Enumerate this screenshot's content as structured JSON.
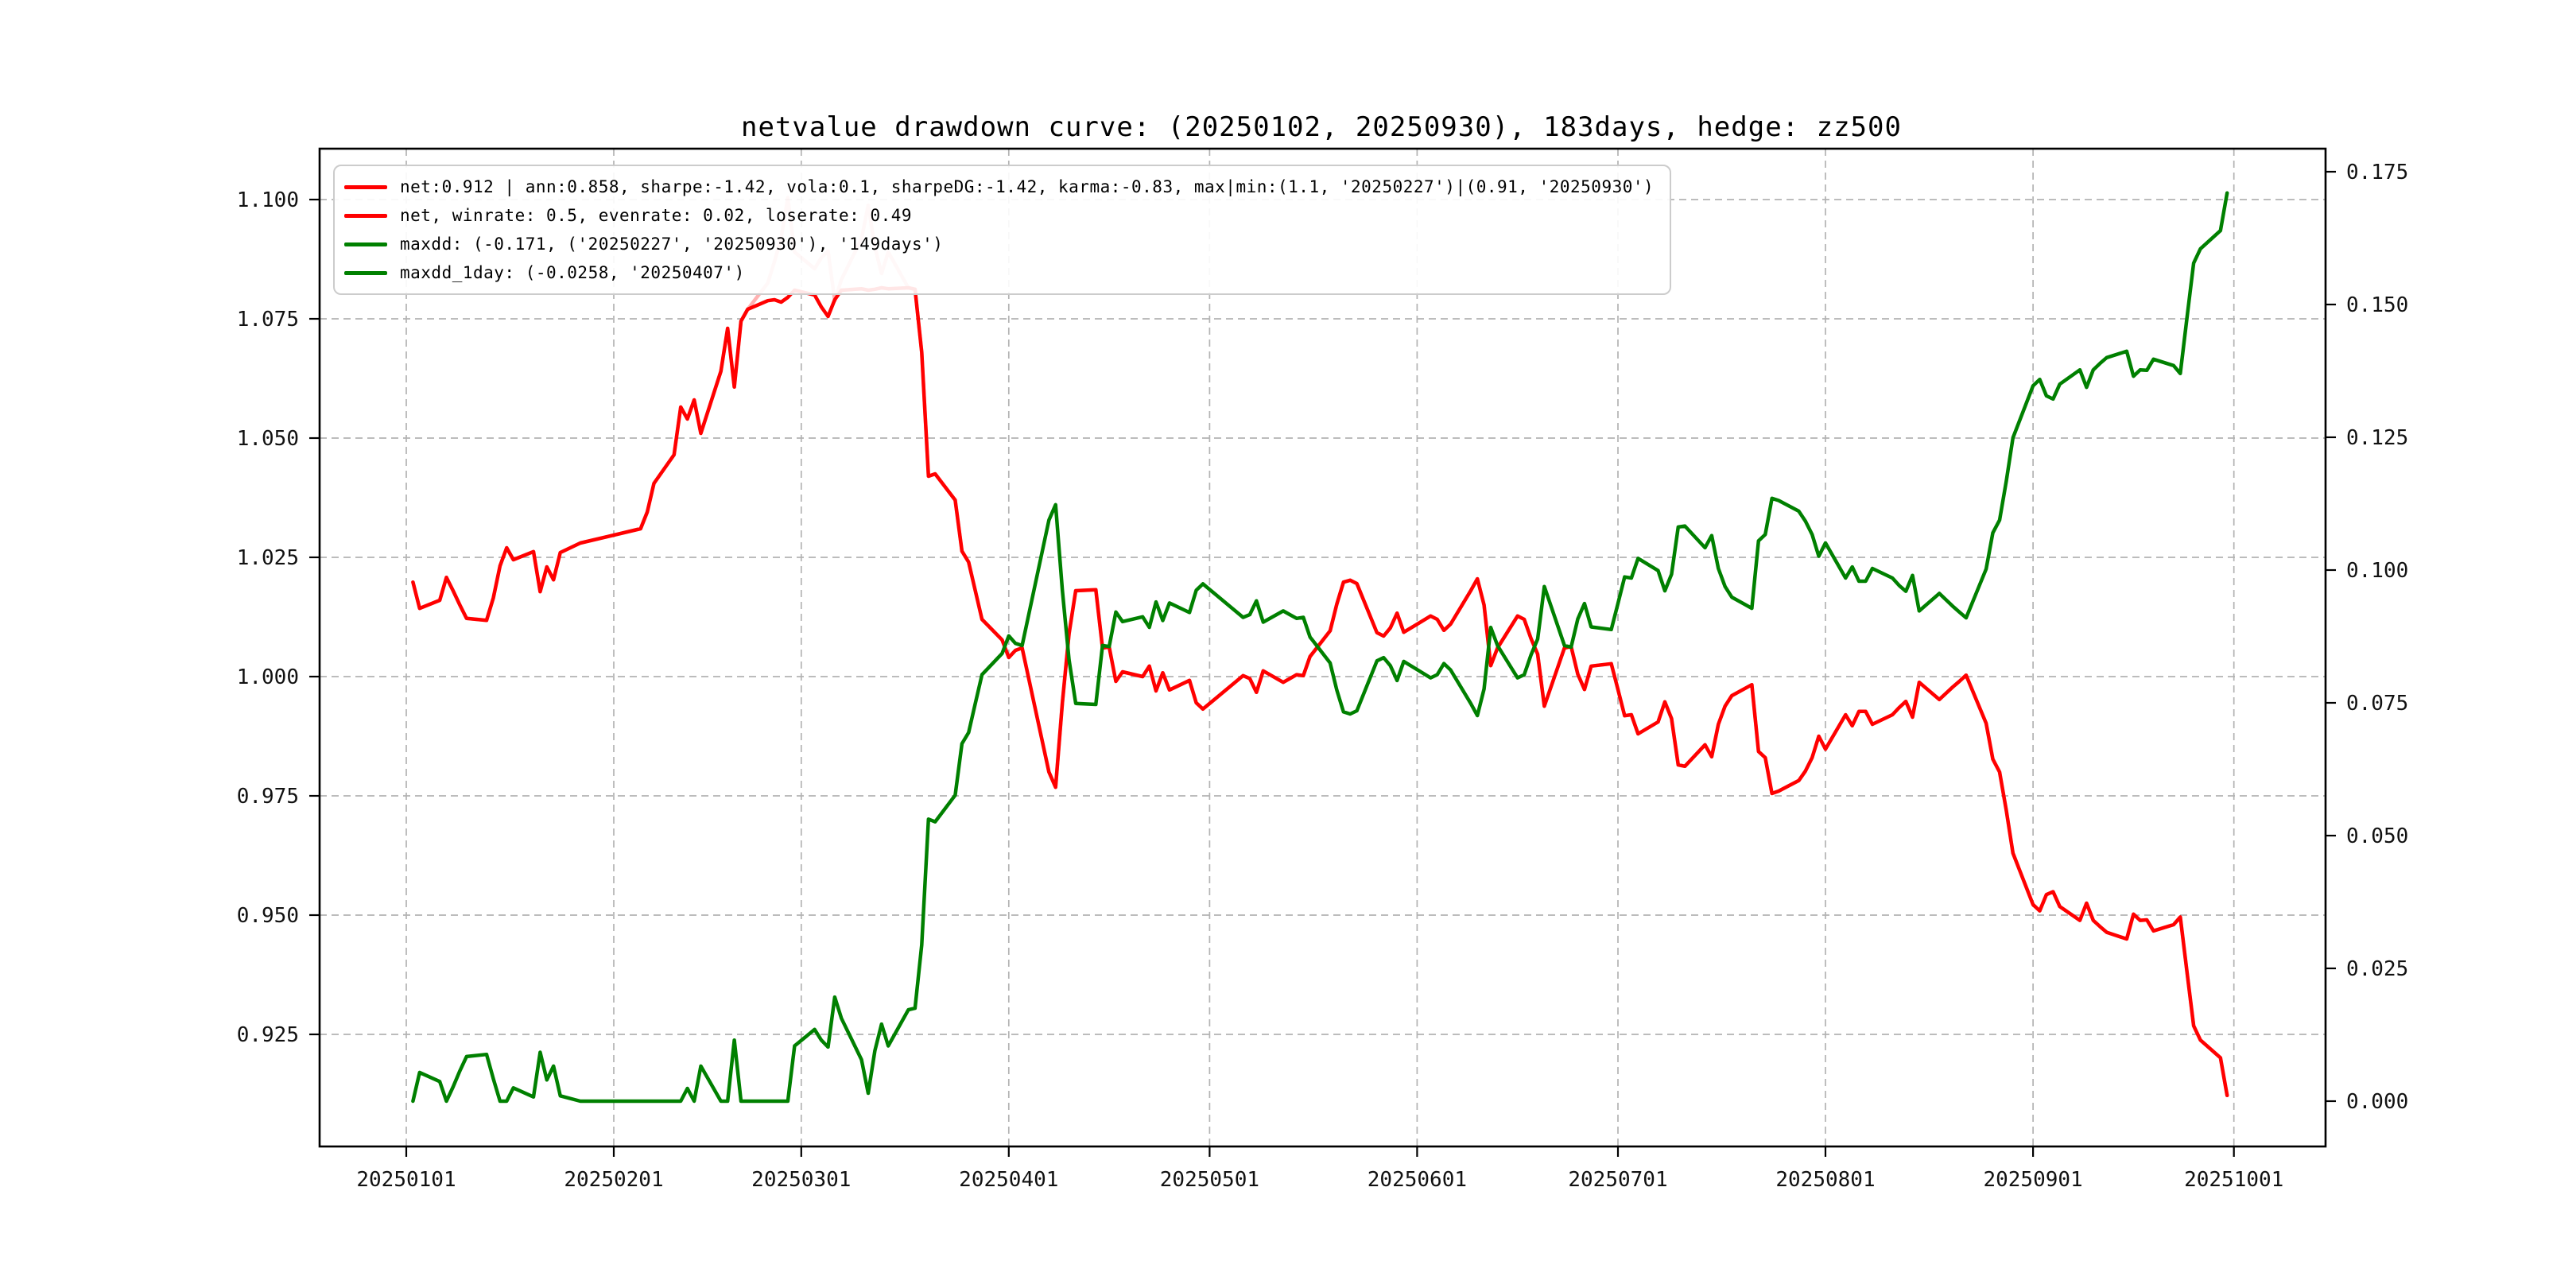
{
  "title": "netvalue drawdown curve: (20250102, 20250930), 183days, hedge: zz500",
  "colors": {
    "net_line": "#ff0000",
    "maxdd_line": "#008000",
    "grid": "#b3b3b3",
    "spine": "#000000",
    "background": "#ffffff"
  },
  "legend": {
    "position": "upper left",
    "items": [
      {
        "label": "net:0.912 | ann:0.858, sharpe:-1.42, vola:0.1, sharpeDG:-1.42, karma:-0.83, max|min:(1.1, '20250227')|(0.91, '20250930')",
        "color": "#ff0000",
        "swatch_opacity": 1
      },
      {
        "label": "net, winrate: 0.5, evenrate: 0.02, loserate: 0.49",
        "color": "#ff0000",
        "swatch_opacity": 1
      },
      {
        "label": "maxdd: (-0.171, ('20250227', '20250930'), '149days')",
        "color": "#008000",
        "swatch_opacity": 1
      },
      {
        "label": "maxdd_1day: (-0.0258, '20250407')",
        "color": "#008000",
        "swatch_opacity": 1
      }
    ]
  },
  "axes": {
    "x_ticks": [
      "20250101",
      "20250201",
      "20250301",
      "20250401",
      "20250501",
      "20250601",
      "20250701",
      "20250801",
      "20250901",
      "20251001"
    ],
    "y_left_ticks": [
      "1.100",
      "1.075",
      "1.050",
      "1.025",
      "1.000",
      "0.975",
      "0.950",
      "0.925"
    ],
    "y_right_ticks": [
      "0.175",
      "0.150",
      "0.125",
      "0.100",
      "0.075",
      "0.050",
      "0.025",
      "0.000"
    ]
  },
  "chart_data": {
    "type": "line",
    "title": "netvalue drawdown curve: (20250102, 20250930), 183days, hedge: zz500",
    "xlabel": "",
    "ylabel_left": "",
    "ylabel_right": "",
    "grid": true,
    "legend_position": "upper left",
    "y_left_tick_values": [
      1.1,
      1.075,
      1.05,
      1.025,
      1.0,
      0.975,
      0.95,
      0.925
    ],
    "y_right_tick_values": [
      0.175,
      0.15,
      0.125,
      0.1,
      0.075,
      0.05,
      0.025,
      0.0
    ],
    "y_left_range": [
      0.9015,
      1.111
    ],
    "y_right_range": [
      -0.0086,
      0.1805
    ],
    "stats": {
      "net_end": 0.912,
      "ann": 0.858,
      "sharpe": -1.42,
      "vola": 0.1,
      "sharpeDG": -1.42,
      "karma": -0.83,
      "max": {
        "value": 1.1,
        "date": "20250227"
      },
      "min": {
        "value": 0.91,
        "date": "20250930"
      },
      "winrate": 0.5,
      "evenrate": 0.02,
      "loserate": 0.49,
      "maxdd": {
        "value": -0.171,
        "from": "20250227",
        "to": "20250930",
        "duration": "149days"
      },
      "maxdd_1day": {
        "value": -0.0258,
        "date": "20250407"
      }
    },
    "x_dates": [
      "20250102",
      "20250103",
      "20250106",
      "20250107",
      "20250108",
      "20250109",
      "20250110",
      "20250113",
      "20250114",
      "20250115",
      "20250116",
      "20250117",
      "20250120",
      "20250121",
      "20250122",
      "20250123",
      "20250124",
      "20250127",
      "20250205",
      "20250206",
      "20250207",
      "20250210",
      "20250211",
      "20250212",
      "20250213",
      "20250214",
      "20250217",
      "20250218",
      "20250219",
      "20250220",
      "20250221",
      "20250224",
      "20250225",
      "20250226",
      "20250227",
      "20250228",
      "20250303",
      "20250304",
      "20250305",
      "20250306",
      "20250307",
      "20250310",
      "20250311",
      "20250312",
      "20250313",
      "20250314",
      "20250317",
      "20250318",
      "20250319",
      "20250320",
      "20250321",
      "20250324",
      "20250325",
      "20250326",
      "20250327",
      "20250328",
      "20250331",
      "20250401",
      "20250402",
      "20250403",
      "20250407",
      "20250408",
      "20250409",
      "20250410",
      "20250411",
      "20250414",
      "20250415",
      "20250416",
      "20250417",
      "20250418",
      "20250421",
      "20250422",
      "20250423",
      "20250424",
      "20250425",
      "20250428",
      "20250429",
      "20250430",
      "20250506",
      "20250507",
      "20250508",
      "20250509",
      "20250512",
      "20250513",
      "20250514",
      "20250515",
      "20250516",
      "20250519",
      "20250520",
      "20250521",
      "20250522",
      "20250523",
      "20250526",
      "20250527",
      "20250528",
      "20250529",
      "20250530",
      "20250603",
      "20250604",
      "20250605",
      "20250606",
      "20250609",
      "20250610",
      "20250611",
      "20250612",
      "20250613",
      "20250616",
      "20250617",
      "20250618",
      "20250619",
      "20250620",
      "20250623",
      "20250624",
      "20250625",
      "20250626",
      "20250627",
      "20250630",
      "20250701",
      "20250702",
      "20250703",
      "20250704",
      "20250707",
      "20250708",
      "20250709",
      "20250710",
      "20250711",
      "20250714",
      "20250715",
      "20250716",
      "20250717",
      "20250718",
      "20250721",
      "20250722",
      "20250723",
      "20250724",
      "20250725",
      "20250728",
      "20250729",
      "20250730",
      "20250731",
      "20250801",
      "20250804",
      "20250805",
      "20250806",
      "20250807",
      "20250808",
      "20250811",
      "20250812",
      "20250813",
      "20250814",
      "20250815",
      "20250818",
      "20250819",
      "20250820",
      "20250821",
      "20250822",
      "20250825",
      "20250826",
      "20250827",
      "20250828",
      "20250829",
      "20250901",
      "20250902",
      "20250903",
      "20250904",
      "20250905",
      "20250908",
      "20250909",
      "20250910",
      "20250911",
      "20250912",
      "20250915",
      "20250916",
      "20250917",
      "20250918",
      "20250919",
      "20250922",
      "20250923",
      "20250924",
      "20250925",
      "20250926",
      "20250929",
      "20250930"
    ],
    "series": [
      {
        "name": "net",
        "legend": "net:0.912 | ann:0.858, sharpe:-1.42, vola:0.1, sharpeDG:-1.42, karma:-0.83, max|min:(1.1, '20250227')|(0.91, '20250930')",
        "color": "#ff0000",
        "opacity": 0.3,
        "axis": "left",
        "values": [
          1.0198,
          1.0143,
          1.016,
          1.0208,
          1.018,
          1.015,
          1.0122,
          1.0118,
          1.0165,
          1.0232,
          1.027,
          1.0245,
          1.0262,
          1.0178,
          1.023,
          1.0203,
          1.026,
          1.028,
          1.031,
          1.0345,
          1.0405,
          1.0465,
          1.0565,
          1.054,
          1.058,
          1.051,
          1.064,
          1.073,
          1.0607,
          1.0745,
          1.077,
          1.0825,
          1.087,
          1.092,
          1.1004,
          1.089,
          1.0855,
          1.0878,
          1.0892,
          1.0788,
          1.0832,
          1.0918,
          1.0988,
          1.09,
          1.0845,
          1.089,
          1.0815,
          1.0812,
          1.068,
          1.042,
          1.0425,
          1.037,
          1.0263,
          1.024,
          1.018,
          1.012,
          1.0077,
          1.004,
          1.0055,
          1.006,
          0.98,
          0.9768,
          0.9945,
          1.009,
          1.018,
          1.0182,
          1.006,
          1.0062,
          0.999,
          1.001,
          1.0,
          1.0022,
          0.997,
          1.0008,
          0.9972,
          0.9992,
          0.9945,
          0.9932,
          1.0002,
          0.9996,
          0.9967,
          1.0012,
          0.9988,
          0.9996,
          1.0004,
          1.0002,
          1.0042,
          1.0096,
          1.0152,
          1.0198,
          1.0202,
          1.0195,
          1.0092,
          1.0085,
          1.0102,
          1.0133,
          1.0093,
          1.0127,
          1.012,
          1.0097,
          1.011,
          1.018,
          1.0205,
          1.015,
          1.0023,
          1.006,
          1.0127,
          1.012,
          1.008,
          1.0047,
          0.9938,
          1.006,
          1.0063,
          1.0005,
          0.9973,
          1.0022,
          1.0027,
          0.9973,
          0.9918,
          0.992,
          0.988,
          0.9905,
          0.9947,
          0.9912,
          0.9815,
          0.9812,
          0.9857,
          0.9832,
          0.99,
          0.9938,
          0.996,
          0.9983,
          0.9843,
          0.983,
          0.9755,
          0.976,
          0.9782,
          0.9802,
          0.983,
          0.9875,
          0.9848,
          0.992,
          0.9897,
          0.9927,
          0.9927,
          0.99,
          0.992,
          0.9935,
          0.9948,
          0.9915,
          0.9988,
          0.9952,
          0.9965,
          0.9978,
          0.999,
          1.0003,
          0.9902,
          0.9827,
          0.98,
          0.972,
          0.963,
          0.9522,
          0.9509,
          0.9543,
          0.9549,
          0.9518,
          0.9489,
          0.9525,
          0.9489,
          0.9476,
          0.9464,
          0.945,
          0.9502,
          0.9489,
          0.949,
          0.9467,
          0.948,
          0.9496,
          0.9381,
          0.9268,
          0.9238,
          0.9201,
          0.9122
        ]
      },
      {
        "name": "net_winrate",
        "legend": "net, winrate: 0.5, evenrate: 0.02, loserate: 0.49",
        "color": "#ff0000",
        "opacity": 1,
        "axis": "left",
        "values": [
          1.0198,
          1.0143,
          1.016,
          1.0208,
          1.018,
          1.015,
          1.0122,
          1.0118,
          1.0165,
          1.0232,
          1.027,
          1.0245,
          1.0262,
          1.0178,
          1.023,
          1.0203,
          1.026,
          1.028,
          1.031,
          1.0345,
          1.0405,
          1.0465,
          1.0565,
          1.054,
          1.058,
          1.051,
          1.064,
          1.073,
          1.0607,
          1.0745,
          1.077,
          1.0788,
          1.079,
          1.0785,
          1.0795,
          1.081,
          1.08,
          1.0775,
          1.0755,
          1.079,
          1.081,
          1.0813,
          1.081,
          1.0812,
          1.0815,
          1.0813,
          1.0815,
          1.0812,
          1.068,
          1.042,
          1.0425,
          1.037,
          1.0263,
          1.024,
          1.018,
          1.012,
          1.0077,
          1.004,
          1.0055,
          1.006,
          0.98,
          0.9768,
          0.9945,
          1.009,
          1.018,
          1.0182,
          1.006,
          1.0062,
          0.999,
          1.001,
          1.0,
          1.0022,
          0.997,
          1.0008,
          0.9972,
          0.9992,
          0.9945,
          0.9932,
          1.0002,
          0.9996,
          0.9967,
          1.0012,
          0.9988,
          0.9996,
          1.0004,
          1.0002,
          1.0042,
          1.0096,
          1.0152,
          1.0198,
          1.0202,
          1.0195,
          1.0092,
          1.0085,
          1.0102,
          1.0133,
          1.0093,
          1.0127,
          1.012,
          1.0097,
          1.011,
          1.018,
          1.0205,
          1.015,
          1.0023,
          1.006,
          1.0127,
          1.012,
          1.008,
          1.0047,
          0.9938,
          1.006,
          1.0063,
          1.0005,
          0.9973,
          1.0022,
          1.0027,
          0.9973,
          0.9918,
          0.992,
          0.988,
          0.9905,
          0.9947,
          0.9912,
          0.9815,
          0.9812,
          0.9857,
          0.9832,
          0.99,
          0.9938,
          0.996,
          0.9983,
          0.9843,
          0.983,
          0.9755,
          0.976,
          0.9782,
          0.9802,
          0.983,
          0.9875,
          0.9848,
          0.992,
          0.9897,
          0.9927,
          0.9927,
          0.99,
          0.992,
          0.9935,
          0.9948,
          0.9915,
          0.9988,
          0.9952,
          0.9965,
          0.9978,
          0.999,
          1.0003,
          0.9902,
          0.9827,
          0.98,
          0.972,
          0.963,
          0.9522,
          0.9509,
          0.9543,
          0.9549,
          0.9518,
          0.9489,
          0.9525,
          0.9489,
          0.9476,
          0.9464,
          0.945,
          0.9502,
          0.9489,
          0.949,
          0.9467,
          0.948,
          0.9496,
          0.9381,
          0.9268,
          0.9238,
          0.9201,
          0.9122
        ]
      },
      {
        "name": "maxdd",
        "legend": "maxdd: (-0.171, ('20250227', '20250930'), '149days')",
        "color": "#008000",
        "opacity": 1,
        "axis": "right",
        "values": [
          0.0,
          0.0054,
          0.0037,
          0.0,
          0.0027,
          0.0057,
          0.0084,
          0.0088,
          0.0042,
          0.0,
          0.0,
          0.0025,
          0.0008,
          0.0092,
          0.004,
          0.0066,
          0.001,
          0.0,
          0.0,
          0.0,
          0.0,
          0.0,
          0.0,
          0.0024,
          0.0,
          0.0066,
          0.0,
          0.0,
          0.0115,
          0.0,
          0.0,
          0.0,
          0.0,
          0.0,
          0.0,
          0.0104,
          0.0135,
          0.0115,
          0.0102,
          0.0196,
          0.0156,
          0.0078,
          0.0015,
          0.0095,
          0.0145,
          0.0104,
          0.0172,
          0.0175,
          0.0294,
          0.0531,
          0.0526,
          0.0576,
          0.0673,
          0.0694,
          0.0749,
          0.0803,
          0.0843,
          0.0876,
          0.0862,
          0.0858,
          0.1094,
          0.1123,
          0.0962,
          0.0831,
          0.0749,
          0.0747,
          0.0858,
          0.0856,
          0.0921,
          0.0903,
          0.0912,
          0.0892,
          0.094,
          0.0905,
          0.0938,
          0.092,
          0.0962,
          0.0974,
          0.0911,
          0.0916,
          0.0942,
          0.0902,
          0.0923,
          0.0916,
          0.0909,
          0.0911,
          0.0874,
          0.0825,
          0.0774,
          0.0733,
          0.0729,
          0.0735,
          0.0829,
          0.0835,
          0.082,
          0.0792,
          0.0828,
          0.0797,
          0.0803,
          0.0824,
          0.0812,
          0.0749,
          0.0726,
          0.0776,
          0.0892,
          0.0858,
          0.0797,
          0.0803,
          0.084,
          0.087,
          0.0969,
          0.0858,
          0.0855,
          0.0908,
          0.0937,
          0.0893,
          0.0888,
          0.0937,
          0.0987,
          0.0985,
          0.1022,
          0.0999,
          0.0961,
          0.0992,
          0.1081,
          0.1083,
          0.1042,
          0.1065,
          0.1003,
          0.0969,
          0.0949,
          0.0928,
          0.1055,
          0.1067,
          0.1135,
          0.1131,
          0.1111,
          0.1092,
          0.1067,
          0.1026,
          0.1051,
          0.0985,
          0.1006,
          0.0979,
          0.0979,
          0.1003,
          0.0985,
          0.0971,
          0.096,
          0.099,
          0.0923,
          0.0956,
          0.0944,
          0.0932,
          0.0921,
          0.091,
          0.1002,
          0.107,
          0.1094,
          0.1167,
          0.1249,
          0.1347,
          0.1359,
          0.1328,
          0.1322,
          0.135,
          0.1377,
          0.1344,
          0.1377,
          0.1389,
          0.14,
          0.1412,
          0.1365,
          0.1377,
          0.1376,
          0.1397,
          0.1385,
          0.137,
          0.1475,
          0.1578,
          0.1605,
          0.1639,
          0.171
        ]
      }
    ]
  }
}
